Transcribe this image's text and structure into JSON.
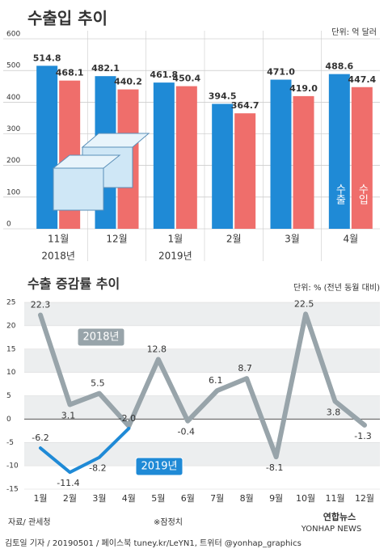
{
  "chart_data": [
    {
      "type": "bar",
      "title": "수출입 추이",
      "unit": "단위: 억 달러",
      "categories": [
        "11월",
        "12월",
        "1월",
        "2월",
        "3월",
        "4월"
      ],
      "categories_sub": [
        "2018년",
        null,
        "2019년",
        null,
        null,
        null
      ],
      "series": [
        {
          "name": "수출",
          "color": "#1f8ad6",
          "values": [
            514.8,
            482.1,
            461.8,
            394.5,
            471.0,
            488.6
          ],
          "value_labels": [
            "514.8",
            "482.1",
            "461.8",
            "394.5",
            "471.0",
            "488.6"
          ]
        },
        {
          "name": "수입",
          "color": "#ef6e6b",
          "values": [
            468.1,
            440.2,
            450.4,
            364.7,
            419.0,
            447.4
          ],
          "value_labels": [
            "468.1",
            "440.2",
            "450.4",
            "364.7",
            "419.0",
            "447.4"
          ]
        }
      ],
      "ylim": [
        0,
        600
      ],
      "yticks": [
        0,
        100,
        200,
        300,
        400,
        500,
        600
      ]
    },
    {
      "type": "line",
      "title": "수출 증감률 추이",
      "unit": "단위: % (전년 동월 대비)",
      "categories": [
        "1월",
        "2월",
        "3월",
        "4월",
        "5월",
        "6월",
        "7월",
        "8월",
        "9월",
        "10월",
        "11월",
        "12월"
      ],
      "series": [
        {
          "name": "2018년",
          "color": "#98a4aa",
          "values": [
            22.3,
            3.1,
            5.5,
            -1.5,
            12.8,
            -0.4,
            6.1,
            8.7,
            -8.1,
            22.5,
            3.8,
            -1.3
          ],
          "value_labels": [
            "22.3",
            "3.1",
            "5.5",
            null,
            "12.8",
            "-0.4",
            "6.1",
            "8.7",
            "-8.1",
            "22.5",
            "3.8",
            "-1.3"
          ]
        },
        {
          "name": "2019년",
          "color": "#1f8ad6",
          "values": [
            -6.2,
            -11.4,
            -8.2,
            -2.0,
            null,
            null,
            null,
            null,
            null,
            null,
            null,
            null
          ],
          "value_labels": [
            "-6.2",
            "-11.4",
            "-8.2",
            "-2.0",
            null,
            null,
            null,
            null,
            null,
            null,
            null,
            null
          ]
        }
      ],
      "ylim": [
        -15,
        25
      ],
      "yticks": [
        -15,
        -10,
        -5,
        0,
        5,
        10,
        15,
        20,
        25
      ]
    }
  ],
  "footer": {
    "source": "자료/ 관세청",
    "note": "※잠정치",
    "credit": "김토일 기자 / 20190501 / 페이스북 tuney.kr/LeYN1, 트위터 @yonhap_graphics",
    "logo": "연합뉴스",
    "logo_en": "YONHAP NEWS"
  }
}
